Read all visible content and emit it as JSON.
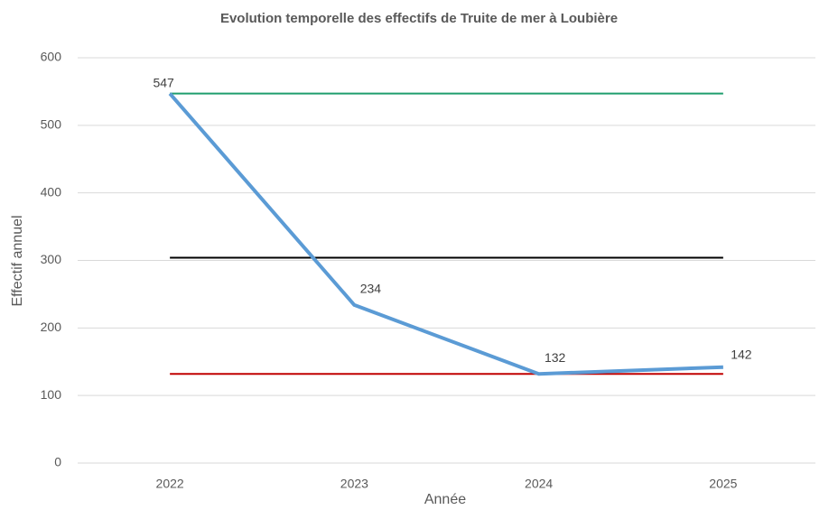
{
  "chart_data": {
    "type": "line",
    "title": "Evolution temporelle des effectifs de Truite de mer à Loubière",
    "x_label": "Année",
    "y_label": "Effectif annuel",
    "categories": [
      "2022",
      "2023",
      "2024",
      "2025"
    ],
    "series": [
      {
        "color": "#5b9bd5",
        "values": [
          547,
          234,
          132,
          142
        ]
      }
    ],
    "reference_lines": [
      {
        "value": 547,
        "color": "#1f9e6e"
      },
      {
        "value": 304,
        "color": "#000000"
      },
      {
        "value": 132,
        "color": "#c00000"
      }
    ],
    "ylim": [
      0,
      600
    ],
    "yticks": [
      0,
      100,
      200,
      300,
      400,
      500,
      600
    ],
    "grid": true
  }
}
